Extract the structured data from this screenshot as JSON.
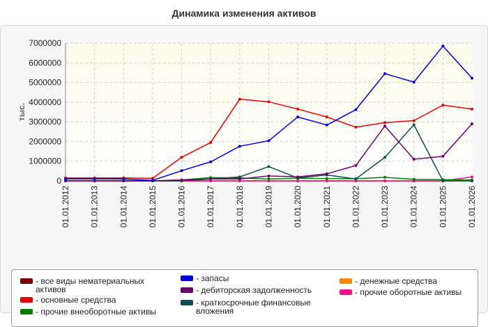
{
  "chart_data": {
    "type": "line",
    "title": "Динамика изменения активов",
    "ylabel": "тыс.",
    "xlabel": "",
    "x": [
      "01.01.2012",
      "01.01.2013",
      "01.01.2014",
      "01.01.2015",
      "01.01.2016",
      "01.01.2017",
      "01.01.2018",
      "01.01.2019",
      "01.01.2020",
      "01.01.2021",
      "01.01.2022",
      "01.01.2023",
      "01.01.2024",
      "01.01.2025",
      "01.01.2026"
    ],
    "yticks": [
      "0",
      "1000000",
      "2000000",
      "3000000",
      "4000000",
      "5000000",
      "6000000",
      "7000000"
    ],
    "ylim": [
      0,
      7000000
    ],
    "grid": true,
    "legend_position": "bottom",
    "series": [
      {
        "name": "все виды нематериальных активов",
        "color": "#7a0000",
        "values": [
          0,
          0,
          0,
          0,
          0,
          0,
          0,
          0,
          0,
          0,
          0,
          0,
          0,
          0,
          0
        ]
      },
      {
        "name": "основные средства",
        "color": "#e60000",
        "values": [
          150000,
          150000,
          150000,
          130000,
          1200000,
          1950000,
          4150000,
          4020000,
          3650000,
          3250000,
          2730000,
          2960000,
          3060000,
          3850000,
          3650000
        ]
      },
      {
        "name": "прочие внеоборотные активы",
        "color": "#008000",
        "values": [
          0,
          0,
          0,
          0,
          50000,
          170000,
          150000,
          100000,
          130000,
          120000,
          110000,
          180000,
          80000,
          60000,
          50000
        ]
      },
      {
        "name": "запасы",
        "color": "#0000dd",
        "values": [
          100000,
          100000,
          100000,
          30000,
          520000,
          970000,
          1760000,
          2040000,
          3250000,
          2840000,
          3620000,
          5450000,
          5020000,
          6850000,
          5220000
        ]
      },
      {
        "name": "дебиторская задолженность",
        "color": "#6e006e",
        "values": [
          0,
          0,
          0,
          0,
          50000,
          100000,
          100000,
          250000,
          200000,
          360000,
          780000,
          2790000,
          1100000,
          1250000,
          2900000
        ]
      },
      {
        "name": "краткосрочные финансовые вложения",
        "color": "#0f4c4c",
        "values": [
          0,
          0,
          0,
          0,
          0,
          100000,
          200000,
          730000,
          150000,
          300000,
          100000,
          1200000,
          2850000,
          0,
          0
        ]
      },
      {
        "name": "денежные средства",
        "color": "#f58a00",
        "values": [
          0,
          0,
          0,
          0,
          0,
          0,
          0,
          0,
          0,
          0,
          0,
          0,
          0,
          0,
          0
        ]
      },
      {
        "name": "прочие оборотные активы",
        "color": "#f0108c",
        "values": [
          0,
          0,
          0,
          0,
          0,
          0,
          0,
          0,
          0,
          0,
          0,
          0,
          0,
          0,
          200000
        ]
      }
    ]
  }
}
